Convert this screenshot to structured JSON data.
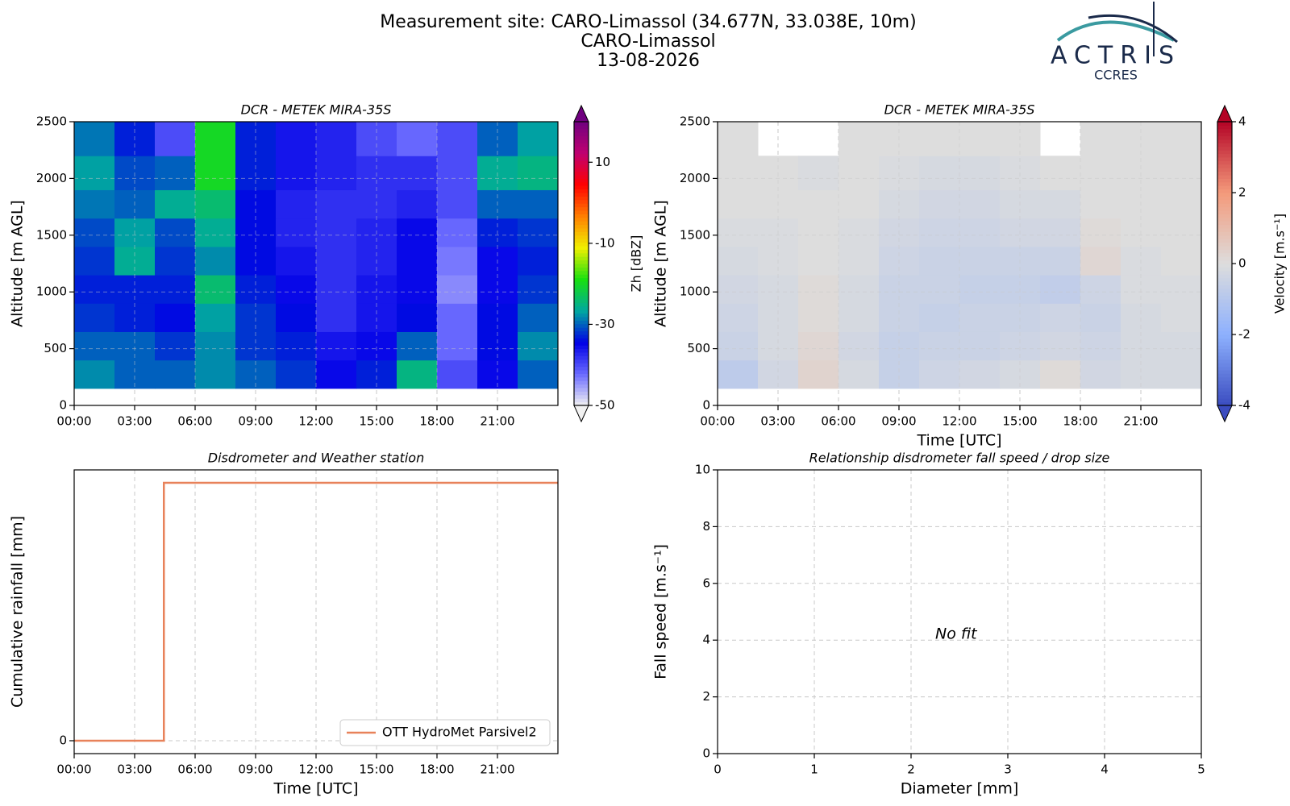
{
  "figure": {
    "title_lines": [
      "Measurement site: CARO-Limassol (34.677N, 33.038E, 10m)",
      "CARO-Limassol",
      "13-08-2026"
    ],
    "logo": {
      "name": "ACTRIS",
      "subtitle": "CCRES"
    }
  },
  "chart_data": [
    {
      "type": "heatmap",
      "title": "DCR - METEK MIRA-35S",
      "ylabel": "Altitude [m AGL]",
      "xlim": [
        0,
        24
      ],
      "xticks": [
        {
          "value": 0,
          "label": "00:00"
        },
        {
          "value": 3,
          "label": "03:00"
        },
        {
          "value": 6,
          "label": "06:00"
        },
        {
          "value": 9,
          "label": "09:00"
        },
        {
          "value": 12,
          "label": "12:00"
        },
        {
          "value": 15,
          "label": "15:00"
        },
        {
          "value": 18,
          "label": "18:00"
        },
        {
          "value": 21,
          "label": "21:00"
        }
      ],
      "ylim": [
        0,
        2500
      ],
      "yticks": [
        0,
        500,
        1000,
        1500,
        2000,
        2500
      ],
      "grid": true,
      "x_edges": [
        0,
        2,
        4,
        6,
        8,
        10,
        12,
        14,
        16,
        18,
        20,
        22,
        24
      ],
      "y_edges": [
        150,
        400,
        650,
        900,
        1150,
        1400,
        1650,
        1900,
        2200,
        2500
      ],
      "z": [
        [
          -28,
          -30,
          -30,
          -28,
          -30,
          -32,
          -35,
          -33,
          -25,
          -40,
          -35,
          -30
        ],
        [
          -30,
          -30,
          -32,
          -28,
          -32,
          -33,
          -36,
          -35,
          -30,
          -42,
          -34,
          -28
        ],
        [
          -32,
          -33,
          -34,
          -27,
          -32,
          -34,
          -38,
          -36,
          -34,
          -42,
          -34,
          -30
        ],
        [
          -33,
          -33,
          -33,
          -24,
          -33,
          -35,
          -38,
          -36,
          -35,
          -44,
          -35,
          -32
        ],
        [
          -32,
          -26,
          -32,
          -28,
          -34,
          -36,
          -38,
          -37,
          -35,
          -43,
          -35,
          -33
        ],
        [
          -31,
          -27,
          -31,
          -26,
          -34,
          -37,
          -38,
          -37,
          -35,
          -42,
          -33,
          -32
        ],
        [
          -29,
          -30,
          -26,
          -24,
          -34,
          -37,
          -38,
          -38,
          -37,
          -40,
          -30,
          -30
        ],
        [
          -27,
          -31,
          -30,
          -20,
          -33,
          -36,
          -37,
          -38,
          -38,
          -40,
          -26,
          -25
        ],
        [
          -29,
          -33,
          -40,
          -20,
          -33,
          -36,
          -37,
          -40,
          -42,
          -40,
          -30,
          -27
        ]
      ],
      "colorbar_label": "Zh [dBZ]",
      "clim": [
        -50,
        20
      ],
      "cticks": [
        -50,
        -30,
        -10,
        10
      ],
      "extend": "both",
      "colormap": [
        "#f2f2f2",
        "#6a6aff",
        "#0000e6",
        "#00a8a0",
        "#18e010",
        "#f0f000",
        "#ff8000",
        "#ff0000",
        "#c00070",
        "#700080"
      ]
    },
    {
      "type": "heatmap",
      "title": "DCR - METEK MIRA-35S",
      "ylabel": "Altitude [m AGL]",
      "xlabel": "Time [UTC]",
      "xlim": [
        0,
        24
      ],
      "xticks": [
        {
          "value": 0,
          "label": "00:00"
        },
        {
          "value": 3,
          "label": "03:00"
        },
        {
          "value": 6,
          "label": "06:00"
        },
        {
          "value": 9,
          "label": "09:00"
        },
        {
          "value": 12,
          "label": "12:00"
        },
        {
          "value": 15,
          "label": "15:00"
        },
        {
          "value": 18,
          "label": "18:00"
        },
        {
          "value": 21,
          "label": "21:00"
        }
      ],
      "ylim": [
        0,
        2500
      ],
      "yticks": [
        0,
        500,
        1000,
        1500,
        2000,
        2500
      ],
      "grid": true,
      "x_edges": [
        0,
        2,
        4,
        6,
        8,
        10,
        12,
        14,
        16,
        18,
        20,
        22,
        24
      ],
      "y_edges": [
        150,
        400,
        650,
        900,
        1150,
        1400,
        1650,
        1900,
        2200,
        2500
      ],
      "z": [
        [
          -0.8,
          -0.3,
          0.3,
          -0.2,
          -0.6,
          -0.4,
          -0.3,
          -0.2,
          0.1,
          -0.3,
          -0.2,
          -0.2
        ],
        [
          -0.5,
          -0.2,
          0.2,
          -0.3,
          -0.6,
          -0.5,
          -0.5,
          -0.4,
          -0.3,
          -0.4,
          -0.2,
          -0.2
        ],
        [
          -0.4,
          -0.2,
          0.1,
          -0.2,
          -0.5,
          -0.6,
          -0.5,
          -0.5,
          -0.4,
          -0.5,
          -0.2,
          -0.1
        ],
        [
          -0.3,
          -0.2,
          0.1,
          -0.2,
          -0.5,
          -0.5,
          -0.6,
          -0.6,
          -0.7,
          -0.4,
          -0.1,
          -0.1
        ],
        [
          -0.2,
          -0.1,
          0.0,
          -0.1,
          -0.4,
          -0.5,
          -0.5,
          -0.5,
          -0.5,
          0.2,
          -0.1,
          0.0
        ],
        [
          -0.1,
          -0.1,
          0.0,
          -0.1,
          -0.3,
          -0.4,
          -0.4,
          -0.3,
          -0.3,
          0.1,
          0.0,
          0.0
        ],
        [
          0.0,
          0.0,
          0.0,
          0.0,
          -0.2,
          -0.3,
          -0.3,
          -0.2,
          -0.2,
          0.0,
          0.0,
          0.0
        ],
        [
          0.0,
          0.0,
          -0.1,
          0.0,
          -0.1,
          -0.2,
          -0.2,
          -0.1,
          0.0,
          0.0,
          0.0,
          0.0
        ],
        [
          0.0,
          null,
          null,
          0.0,
          0.0,
          0.0,
          0.0,
          0.0,
          null,
          0.0,
          0.0,
          0.0
        ]
      ],
      "colorbar_label": "Velocity [m.s⁻¹]",
      "clim": [
        -4,
        4
      ],
      "cticks": [
        -4,
        -2,
        0,
        2,
        4
      ],
      "extend": "both",
      "colormap": [
        "#3b4cc0",
        "#8db0fe",
        "#dddddd",
        "#f49a7b",
        "#b40426"
      ]
    },
    {
      "type": "line",
      "title": "Disdrometer and Weather station",
      "xlabel": "Time [UTC]",
      "ylabel": "Cumulative rainfall [mm]",
      "xlim": [
        0,
        24
      ],
      "xticks": [
        {
          "value": 0,
          "label": "00:00"
        },
        {
          "value": 3,
          "label": "03:00"
        },
        {
          "value": 6,
          "label": "06:00"
        },
        {
          "value": 9,
          "label": "09:00"
        },
        {
          "value": 12,
          "label": "12:00"
        },
        {
          "value": 15,
          "label": "15:00"
        },
        {
          "value": 18,
          "label": "18:00"
        },
        {
          "value": 21,
          "label": "21:00"
        }
      ],
      "ylim": [
        -0.005,
        0.105
      ],
      "yticks": [
        0
      ],
      "grid": true,
      "legend": "lower right",
      "x": [
        0,
        4.45,
        4.45,
        24
      ],
      "series": [
        {
          "name": "OTT HydroMet Parsivel2",
          "color": "#e8825a",
          "values": [
            0,
            0,
            0.1,
            0.1
          ]
        }
      ]
    },
    {
      "type": "scatter",
      "title": "Relationship disdrometer fall speed / drop size",
      "xlabel": "Diameter [mm]",
      "ylabel": "Fall speed [m.s⁻¹]",
      "xlim": [
        0,
        5
      ],
      "xticks": [
        0,
        1,
        2,
        3,
        4,
        5
      ],
      "ylim": [
        0,
        10
      ],
      "yticks": [
        0,
        2,
        4,
        6,
        8,
        10
      ],
      "grid": true,
      "annotation": "No fit"
    }
  ]
}
